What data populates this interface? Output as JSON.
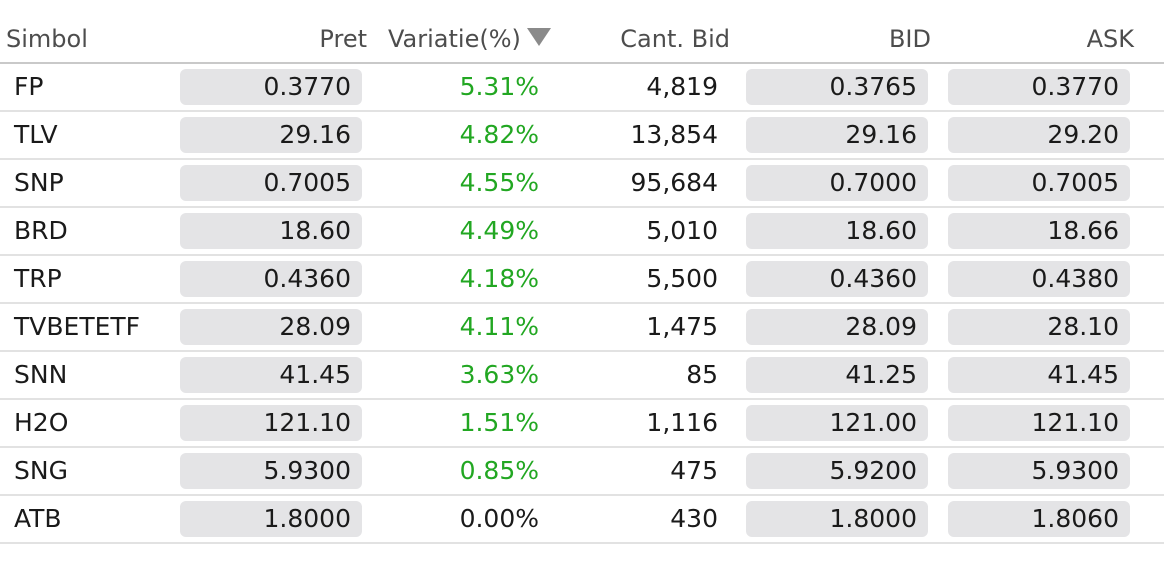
{
  "table": {
    "headers": {
      "symbol": "Simbol",
      "price": "Pret",
      "change": "Variatie(%)",
      "bid_qty": "Cant. Bid",
      "bid": "BID",
      "ask": "ASK"
    },
    "sort_icon": "sort-descending-triangle-icon",
    "colors": {
      "positive": "#22a722",
      "neutral": "#1a1a1a",
      "cell_bg": "#e4e4e6",
      "header_text": "#4d4d4d"
    },
    "rows": [
      {
        "symbol": "FP",
        "price": "0.3770",
        "change": "5.31%",
        "bid_qty": "4,819",
        "bid": "0.3765",
        "ask": "0.3770"
      },
      {
        "symbol": "TLV",
        "price": "29.16",
        "change": "4.82%",
        "bid_qty": "13,854",
        "bid": "29.16",
        "ask": "29.20"
      },
      {
        "symbol": "SNP",
        "price": "0.7005",
        "change": "4.55%",
        "bid_qty": "95,684",
        "bid": "0.7000",
        "ask": "0.7005"
      },
      {
        "symbol": "BRD",
        "price": "18.60",
        "change": "4.49%",
        "bid_qty": "5,010",
        "bid": "18.60",
        "ask": "18.66"
      },
      {
        "symbol": "TRP",
        "price": "0.4360",
        "change": "4.18%",
        "bid_qty": "5,500",
        "bid": "0.4360",
        "ask": "0.4380"
      },
      {
        "symbol": "TVBETETF",
        "price": "28.09",
        "change": "4.11%",
        "bid_qty": "1,475",
        "bid": "28.09",
        "ask": "28.10"
      },
      {
        "symbol": "SNN",
        "price": "41.45",
        "change": "3.63%",
        "bid_qty": "85",
        "bid": "41.25",
        "ask": "41.45"
      },
      {
        "symbol": "H2O",
        "price": "121.10",
        "change": "1.51%",
        "bid_qty": "1,116",
        "bid": "121.00",
        "ask": "121.10"
      },
      {
        "symbol": "SNG",
        "price": "5.9300",
        "change": "0.85%",
        "bid_qty": "475",
        "bid": "5.9200",
        "ask": "5.9300"
      },
      {
        "symbol": "ATB",
        "price": "1.8000",
        "change": "0.00%",
        "bid_qty": "430",
        "bid": "1.8000",
        "ask": "1.8060"
      }
    ]
  }
}
